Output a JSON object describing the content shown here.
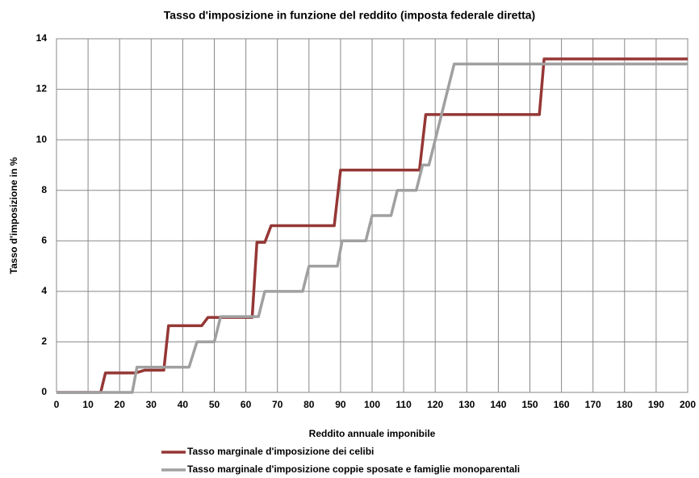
{
  "chart_data": {
    "type": "line",
    "title": "Tasso d'imposizione in funzione del reddito (imposta federale diretta)",
    "xlabel": "Reddito annuale imponibile",
    "ylabel": "Tasso d'imposizione in %",
    "xlim": [
      0,
      200
    ],
    "ylim": [
      0,
      14
    ],
    "xticks": [
      0,
      10,
      20,
      30,
      40,
      50,
      60,
      70,
      80,
      90,
      100,
      110,
      120,
      130,
      140,
      150,
      160,
      170,
      180,
      190,
      200
    ],
    "yticks": [
      0,
      2,
      4,
      6,
      8,
      10,
      12,
      14
    ],
    "grid": true,
    "legend": "bottom",
    "series": [
      {
        "name": "Tasso marginale d'imposizione dei celibi",
        "color": "#953735",
        "x": [
          0,
          14,
          15.5,
          25,
          28,
          34,
          35.5,
          46,
          48,
          62,
          63.5,
          66,
          68,
          88,
          90,
          115,
          117,
          153,
          154.5,
          200
        ],
        "values": [
          0,
          0,
          0.77,
          0.77,
          0.88,
          0.88,
          2.64,
          2.64,
          2.97,
          2.97,
          5.94,
          5.94,
          6.6,
          6.6,
          8.8,
          8.8,
          11,
          11,
          13.2,
          13.2
        ]
      },
      {
        "name": "Tasso marginale d'imposizione coppie sposate e famiglie monoparentali",
        "color": "#a0a0a0",
        "x": [
          0,
          24,
          25.5,
          42,
          44.5,
          50,
          52,
          64,
          66,
          78,
          80,
          89,
          90.5,
          98,
          100,
          106,
          108,
          114,
          116,
          118,
          126,
          200
        ],
        "values": [
          0,
          0,
          1,
          1,
          2,
          2,
          3,
          3,
          4,
          4,
          5,
          5,
          6,
          6,
          7,
          7,
          8,
          8,
          9,
          9,
          13,
          13
        ]
      }
    ]
  }
}
